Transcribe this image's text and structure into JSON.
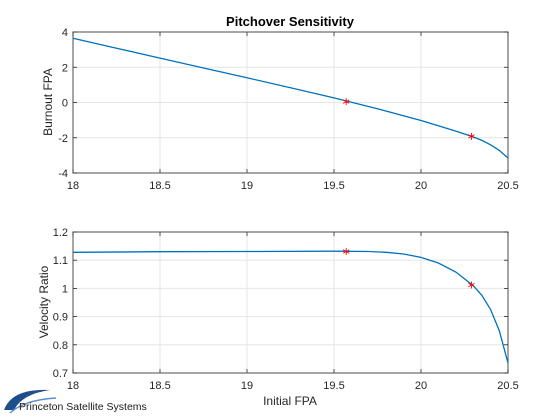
{
  "chart_data": [
    {
      "type": "line",
      "title": "Pitchover Sensitivity",
      "xlabel": "",
      "ylabel": "Burnout FPA",
      "xlim": [
        18,
        20.5
      ],
      "ylim": [
        -4,
        4
      ],
      "xticks": [
        "18",
        "18.5",
        "19",
        "19.5",
        "20",
        "20.5"
      ],
      "yticks": [
        "4",
        "2",
        "0",
        "-2",
        "-4"
      ],
      "grid": true,
      "line_color": "#0072BD",
      "marker_color": "#FF0000",
      "series": [
        {
          "x": [
            18.0,
            18.25,
            18.5,
            18.75,
            19.0,
            19.25,
            19.5,
            19.75,
            20.0,
            20.1,
            20.2,
            20.3,
            20.35,
            20.4,
            20.45,
            20.5
          ],
          "y": [
            3.65,
            3.08,
            2.52,
            1.96,
            1.4,
            0.84,
            0.26,
            -0.35,
            -1.02,
            -1.32,
            -1.62,
            -1.95,
            -2.15,
            -2.4,
            -2.72,
            -3.15
          ]
        }
      ],
      "markers": [
        {
          "x": 19.57,
          "y": 0.05
        },
        {
          "x": 20.29,
          "y": -1.92
        }
      ]
    },
    {
      "type": "line",
      "title": "",
      "xlabel": "Initial FPA",
      "ylabel": "Velocity Ratio",
      "xlim": [
        18,
        20.5
      ],
      "ylim": [
        0.7,
        1.2
      ],
      "xticks": [
        "18",
        "18.5",
        "19",
        "19.5",
        "20",
        "20.5"
      ],
      "yticks": [
        "1.2",
        "1.1",
        "1",
        "0.9",
        "0.8",
        "0.7"
      ],
      "grid": true,
      "line_color": "#0072BD",
      "marker_color": "#FF0000",
      "series": [
        {
          "x": [
            18.0,
            18.5,
            19.0,
            19.5,
            19.7,
            19.8,
            19.9,
            20.0,
            20.1,
            20.2,
            20.3,
            20.35,
            20.4,
            20.45,
            20.5
          ],
          "y": [
            1.128,
            1.13,
            1.131,
            1.132,
            1.131,
            1.128,
            1.122,
            1.11,
            1.09,
            1.058,
            1.01,
            0.975,
            0.925,
            0.85,
            0.735
          ]
        }
      ],
      "markers": [
        {
          "x": 19.57,
          "y": 1.131
        },
        {
          "x": 20.29,
          "y": 1.012
        }
      ]
    }
  ],
  "logo": {
    "text": "Princeton Satellite Systems",
    "color": "#1f4e8c"
  }
}
